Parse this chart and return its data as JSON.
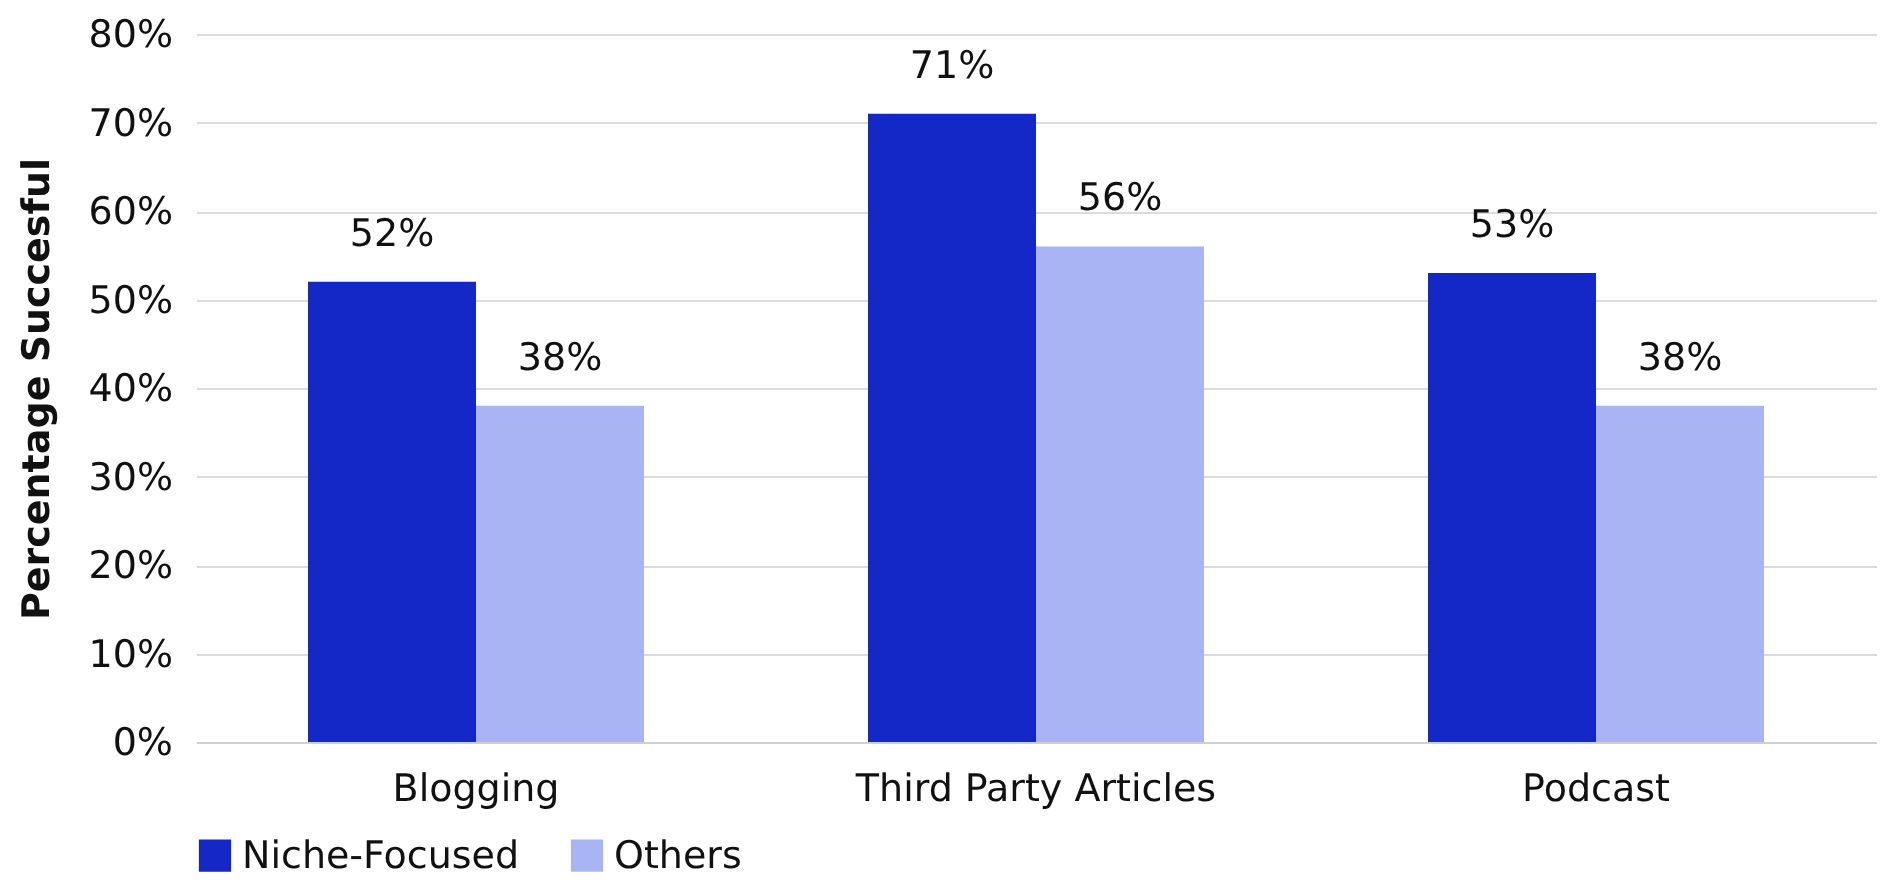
{
  "chart_data": {
    "type": "bar",
    "ylabel": "Percentage Succesful",
    "categories": [
      "Blogging",
      "Third Party Articles",
      "Podcast"
    ],
    "series": [
      {
        "name": "Niche-Focused",
        "color": "#1428c8",
        "values": [
          52,
          71,
          53
        ],
        "value_labels": [
          "52%",
          "71%",
          "53%"
        ]
      },
      {
        "name": "Others",
        "color": "#a9b4f5",
        "values": [
          38,
          56,
          38
        ],
        "value_labels": [
          "38%",
          "56%",
          "38%"
        ]
      }
    ],
    "ylim": [
      0,
      80
    ],
    "yticks": [
      {
        "value": 0,
        "label": "0%"
      },
      {
        "value": 10,
        "label": "10%"
      },
      {
        "value": 20,
        "label": "20%"
      },
      {
        "value": 30,
        "label": "30%"
      },
      {
        "value": 40,
        "label": "40%"
      },
      {
        "value": 50,
        "label": "50%"
      },
      {
        "value": 60,
        "label": "60%"
      },
      {
        "value": 70,
        "label": "70%"
      },
      {
        "value": 80,
        "label": "80%"
      }
    ],
    "grid": "y",
    "legend": "bottom"
  }
}
